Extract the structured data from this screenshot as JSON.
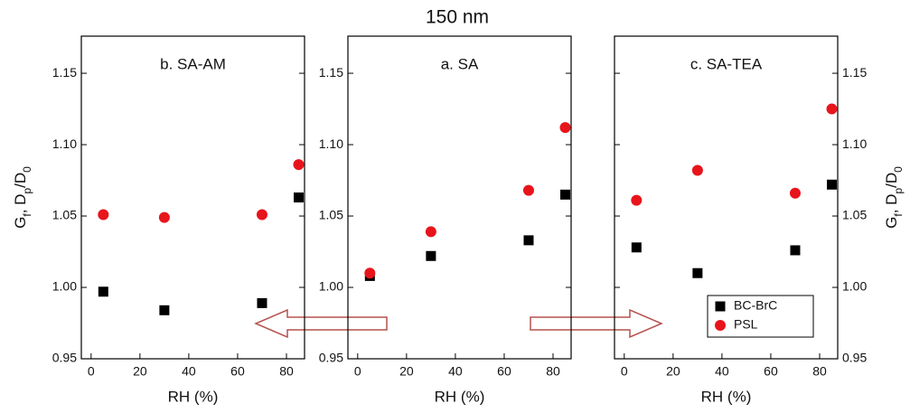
{
  "figure_title": "150 nm",
  "chart_data": [
    {
      "type": "scatter",
      "title": "b. SA-AM",
      "xlabel": "RH (%)",
      "ylabel": [
        {
          "text": "G"
        },
        {
          "text": "f",
          "sub": true
        },
        {
          "text": ", D"
        },
        {
          "text": "p",
          "sub": true
        },
        {
          "text": "/D"
        },
        {
          "text": "0",
          "sub": true
        }
      ],
      "yaxis_side": "left",
      "xlim": [
        -4,
        87.4
      ],
      "ylim": [
        0.95,
        1.176
      ],
      "xticks": [
        0,
        20,
        40,
        60,
        80
      ],
      "yticks": [
        {
          "value": 0.95,
          "label": "0.95"
        },
        {
          "value": 1.0,
          "label": "1.00"
        },
        {
          "value": 1.05,
          "label": "1.05"
        },
        {
          "value": 1.1,
          "label": "1.10"
        },
        {
          "value": 1.15,
          "label": "1.15"
        }
      ],
      "series": [
        {
          "marker": "square",
          "color": "#000000",
          "x": [
            5,
            30,
            70,
            85
          ],
          "values": [
            0.997,
            0.984,
            0.989,
            1.063
          ]
        },
        {
          "marker": "circle",
          "color": "#e8141b",
          "x": [
            5,
            30,
            70,
            85
          ],
          "values": [
            1.051,
            1.049,
            1.051,
            1.086
          ]
        }
      ]
    },
    {
      "type": "scatter",
      "title": "a. SA",
      "xlabel": "RH (%)",
      "yaxis_side": "left",
      "xlim": [
        -4,
        87.4
      ],
      "ylim": [
        0.95,
        1.176
      ],
      "xticks": [
        0,
        20,
        40,
        60,
        80
      ],
      "yticks": [
        {
          "value": 0.95,
          "label": "0.95"
        },
        {
          "value": 1.0,
          "label": "1.00"
        },
        {
          "value": 1.05,
          "label": "1.05"
        },
        {
          "value": 1.1,
          "label": "1.10"
        },
        {
          "value": 1.15,
          "label": "1.15"
        }
      ],
      "series": [
        {
          "marker": "square",
          "color": "#000000",
          "x": [
            5,
            30,
            70,
            85
          ],
          "values": [
            1.008,
            1.022,
            1.033,
            1.065
          ]
        },
        {
          "marker": "circle",
          "color": "#e8141b",
          "x": [
            5,
            30,
            70,
            85
          ],
          "values": [
            1.01,
            1.039,
            1.068,
            1.112
          ]
        }
      ]
    },
    {
      "type": "scatter",
      "title": "c. SA-TEA",
      "xlabel": "RH (%)",
      "ylabel": [
        {
          "text": "G"
        },
        {
          "text": "f",
          "sub": true
        },
        {
          "text": ", D"
        },
        {
          "text": "p",
          "sub": true
        },
        {
          "text": "/D"
        },
        {
          "text": "0",
          "sub": true
        }
      ],
      "yaxis_side": "right",
      "legend": "lower right",
      "xlim": [
        -4,
        87.4
      ],
      "ylim": [
        0.95,
        1.176
      ],
      "xticks": [
        0,
        20,
        40,
        60,
        80
      ],
      "yticks": [
        {
          "value": 0.95,
          "label": "0.95"
        },
        {
          "value": 1.0,
          "label": "1.00"
        },
        {
          "value": 1.05,
          "label": "1.05"
        },
        {
          "value": 1.1,
          "label": "1.10"
        },
        {
          "value": 1.15,
          "label": "1.15"
        }
      ],
      "series": [
        {
          "name": "BC-BrC",
          "marker": "square",
          "color": "#000000",
          "x": [
            5,
            30,
            70,
            85
          ],
          "values": [
            1.028,
            1.01,
            1.026,
            1.072
          ]
        },
        {
          "name": "PSL",
          "marker": "circle",
          "color": "#e8141b",
          "x": [
            5,
            30,
            70,
            85
          ],
          "values": [
            1.061,
            1.082,
            1.066,
            1.125
          ]
        }
      ]
    }
  ]
}
